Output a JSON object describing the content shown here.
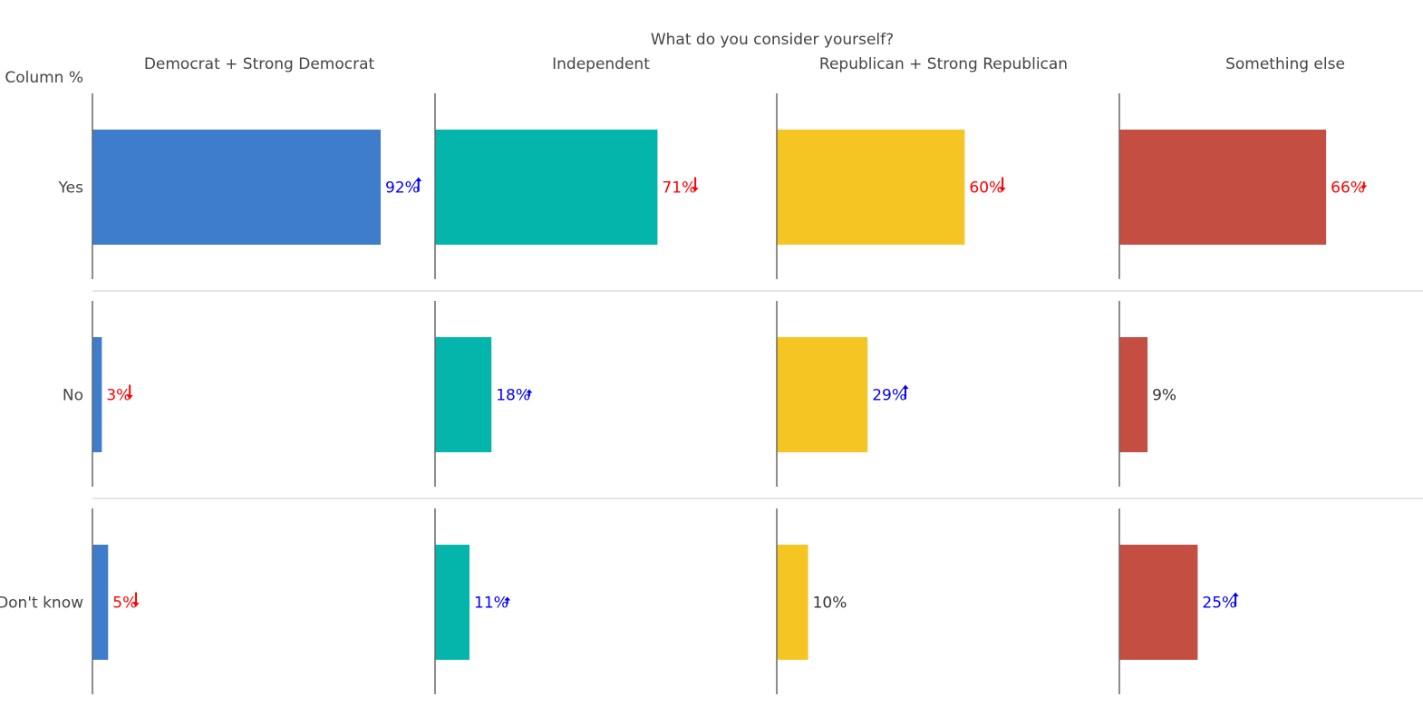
{
  "chart_data": {
    "type": "bar",
    "orientation": "horizontal",
    "layout": "small-multiples",
    "title": "What do you consider yourself?",
    "stub_label": "Column %",
    "xlim": [
      0,
      100
    ],
    "categories": [
      "Yes",
      "No",
      "Don't know"
    ],
    "series": [
      {
        "name": "Democrat + Strong Democrat",
        "color": "#3E7DCC",
        "values": [
          92,
          3,
          5
        ],
        "labels": [
          "92%",
          "3%",
          "5%"
        ],
        "significance": [
          "up",
          "down",
          "down"
        ]
      },
      {
        "name": "Independent",
        "color": "#04B5AC",
        "values": [
          71,
          18,
          11
        ],
        "labels": [
          "71%",
          "18%",
          "11%"
        ],
        "significance": [
          "down",
          "up-small",
          "up-small"
        ]
      },
      {
        "name": "Republican + Strong Republican",
        "color": "#F5C524",
        "values": [
          60,
          29,
          10
        ],
        "labels": [
          "60%",
          "29%",
          "10%"
        ],
        "significance": [
          "down",
          "up",
          "none"
        ]
      },
      {
        "name": "Something else",
        "color": "#C44E41",
        "values": [
          66,
          9,
          25
        ],
        "labels": [
          "66%",
          "9%",
          "25%"
        ],
        "significance": [
          "down-small",
          "none",
          "up"
        ]
      }
    ],
    "significance_colors": {
      "up": "#0000FF",
      "down": "#FF0000",
      "none": "#333333"
    },
    "grid": false,
    "legend": "none"
  }
}
